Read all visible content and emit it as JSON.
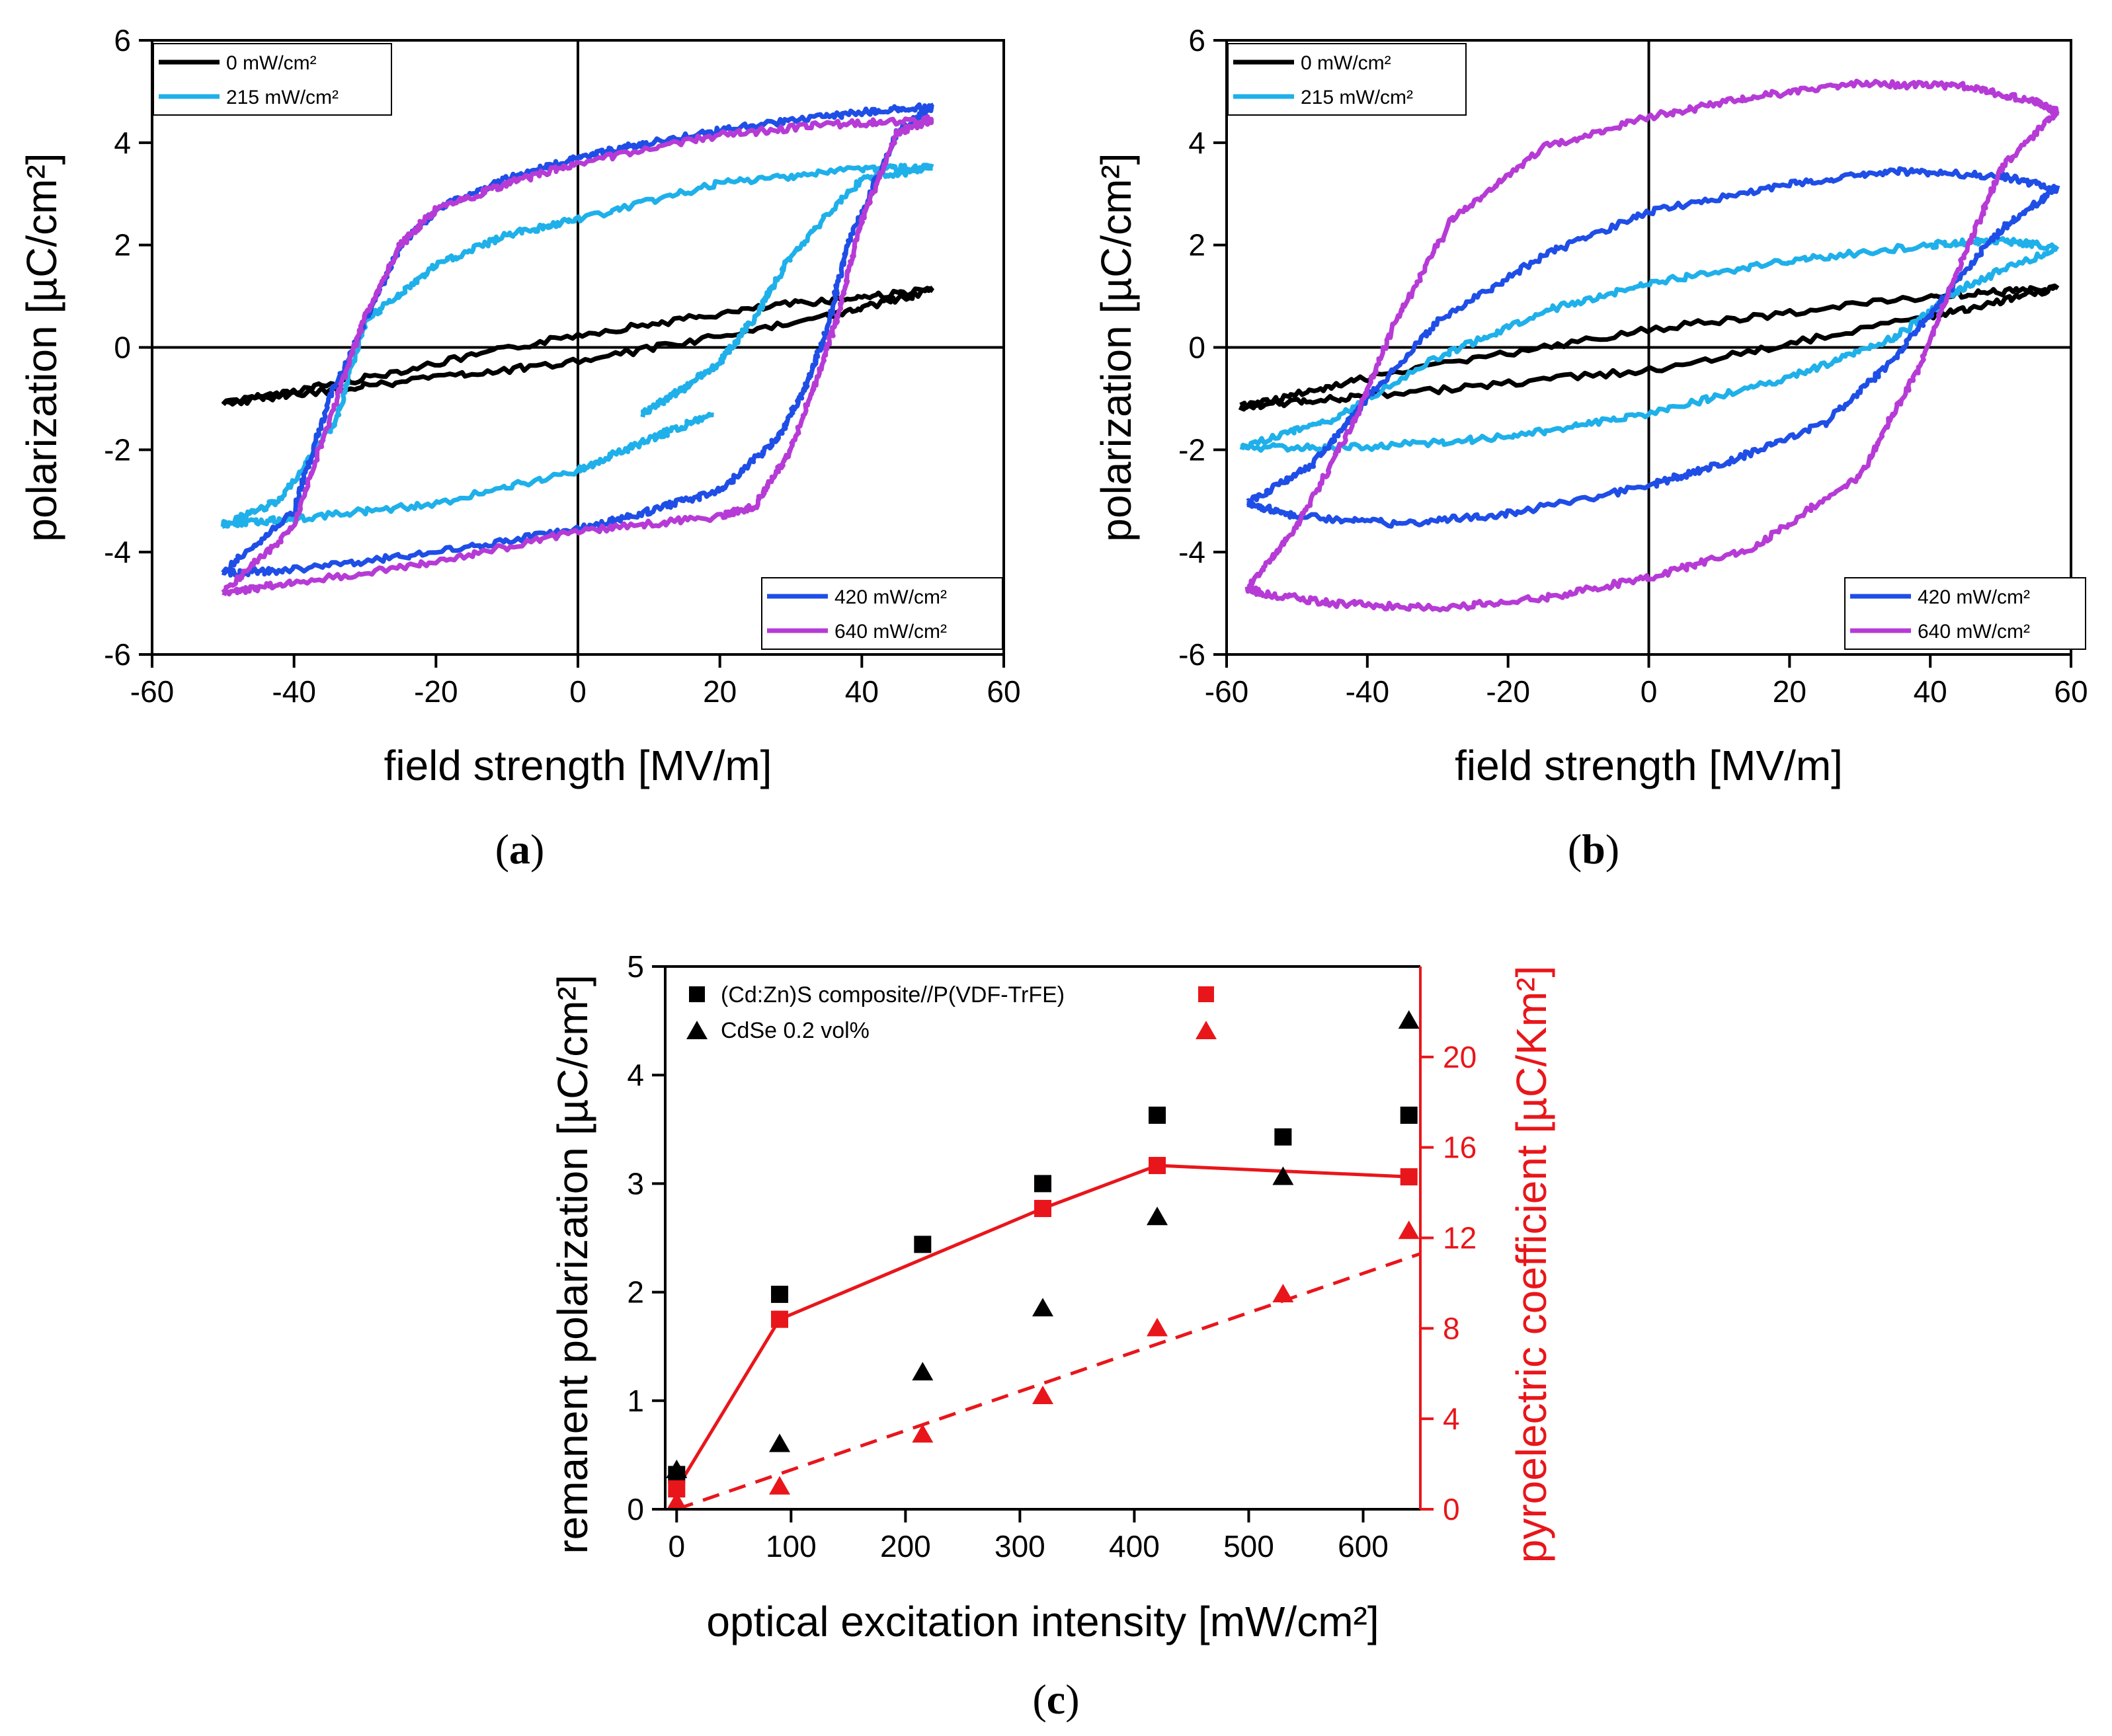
{
  "chart_data": [
    {
      "panel": "a",
      "type": "line",
      "panel_label": "a",
      "xlabel": "field strength [MV/m]",
      "ylabel": "polarization [µC/cm²]",
      "xlim": [
        -60,
        60
      ],
      "ylim": [
        -6,
        6
      ],
      "xticks": [
        -60,
        -40,
        -20,
        0,
        20,
        40,
        60
      ],
      "yticks": [
        -6,
        -4,
        -2,
        0,
        2,
        4,
        6
      ],
      "legend_top_left": [
        "0 mW/cm²",
        "215 mW/cm²"
      ],
      "legend_bottom_right": [
        "420 mW/cm²",
        "640 mW/cm²"
      ],
      "series": [
        {
          "name": "0 mW/cm²",
          "color": "#000000",
          "start": "upper",
          "upper": [
            [
              -50,
              -1.1
            ],
            [
              -30,
              -0.6
            ],
            [
              0,
              0.25
            ],
            [
              30,
              0.85
            ],
            [
              50,
              1.12
            ]
          ],
          "lower": [
            [
              50,
              1.12
            ],
            [
              35,
              0.6
            ],
            [
              0,
              -0.28
            ],
            [
              -30,
              -0.75
            ],
            [
              -50,
              -1.1
            ]
          ]
        },
        {
          "name": "215 mW/cm²",
          "color": "#1fb0ea",
          "start": "upper",
          "upper": [
            [
              -50,
              -3.45
            ],
            [
              -42,
              -3.0
            ],
            [
              -34,
              -1.4
            ],
            [
              -30,
              0.5
            ],
            [
              -20,
              1.6
            ],
            [
              -10,
              2.2
            ],
            [
              0,
              2.5
            ],
            [
              20,
              3.2
            ],
            [
              40,
              3.5
            ],
            [
              50,
              3.5
            ]
          ],
          "lower": [
            [
              50,
              3.5
            ],
            [
              40,
              3.3
            ],
            [
              30,
              1.8
            ],
            [
              25,
              0.6
            ],
            [
              20,
              -0.3
            ],
            [
              15,
              -0.8
            ],
            [
              9,
              -1.3
            ]
          ],
          "tail": [
            [
              19,
              -1.3
            ],
            [
              10,
              -1.8
            ],
            [
              0,
              -2.4
            ],
            [
              -20,
              -3.05
            ],
            [
              -40,
              -3.35
            ],
            [
              -50,
              -3.45
            ]
          ]
        },
        {
          "name": "420 mW/cm²",
          "color": "#1f4ee6",
          "start": "upper",
          "upper": [
            [
              -50,
              -4.4
            ],
            [
              -40,
              -3.2
            ],
            [
              -35,
              -1.0
            ],
            [
              -30,
              0.5
            ],
            [
              -25,
              2.0
            ],
            [
              -20,
              2.7
            ],
            [
              -10,
              3.3
            ],
            [
              0,
              3.7
            ],
            [
              10,
              4.0
            ],
            [
              25,
              4.35
            ],
            [
              40,
              4.6
            ],
            [
              50,
              4.7
            ]
          ],
          "lower": [
            [
              50,
              4.7
            ],
            [
              45,
              4.2
            ],
            [
              38,
              2.0
            ],
            [
              35,
              0.3
            ],
            [
              32,
              -0.8
            ],
            [
              28,
              -1.8
            ],
            [
              20,
              -2.8
            ],
            [
              10,
              -3.2
            ],
            [
              0,
              -3.55
            ],
            [
              -20,
              -4.0
            ],
            [
              -40,
              -4.35
            ],
            [
              -50,
              -4.4
            ]
          ]
        },
        {
          "name": "640 mW/cm²",
          "color": "#b63bd6",
          "start": "upper",
          "upper": [
            [
              -50,
              -4.8
            ],
            [
              -40,
              -3.5
            ],
            [
              -34,
              -1.0
            ],
            [
              -30,
              0.6
            ],
            [
              -25,
              2.0
            ],
            [
              -20,
              2.7
            ],
            [
              -10,
              3.2
            ],
            [
              0,
              3.6
            ],
            [
              20,
              4.15
            ],
            [
              35,
              4.35
            ],
            [
              50,
              4.45
            ]
          ],
          "lower": [
            [
              50,
              4.45
            ],
            [
              45,
              4.2
            ],
            [
              40,
              2.5
            ],
            [
              37,
              0.8
            ],
            [
              34,
              -0.5
            ],
            [
              30,
              -2.0
            ],
            [
              25,
              -3.1
            ],
            [
              20,
              -3.3
            ],
            [
              0,
              -3.6
            ],
            [
              -20,
              -4.2
            ],
            [
              -40,
              -4.6
            ],
            [
              -50,
              -4.8
            ]
          ]
        }
      ]
    },
    {
      "panel": "b",
      "type": "line",
      "panel_label": "b",
      "xlabel": "field strength [MV/m]",
      "ylabel": "polarization [µC/cm²]",
      "xlim": [
        -60,
        60
      ],
      "ylim": [
        -6,
        6
      ],
      "xticks": [
        -60,
        -40,
        -20,
        0,
        20,
        40,
        60
      ],
      "yticks": [
        -6,
        -4,
        -2,
        0,
        2,
        4,
        6
      ],
      "legend_top_left": [
        "0 mW/cm²",
        "215 mW/cm²"
      ],
      "legend_bottom_right": [
        "420 mW/cm²",
        "640 mW/cm²"
      ],
      "series": [
        {
          "name": "0 mW/cm²",
          "color": "#000000",
          "start": "upper",
          "upper": [
            [
              -58,
              -1.15
            ],
            [
              -40,
              -0.6
            ],
            [
              0,
              0.35
            ],
            [
              40,
              1.0
            ],
            [
              58,
              1.15
            ]
          ],
          "lower": [
            [
              58,
              1.15
            ],
            [
              40,
              0.6
            ],
            [
              0,
              -0.45
            ],
            [
              -40,
              -0.95
            ],
            [
              -58,
              -1.15
            ]
          ]
        },
        {
          "name": "215 mW/cm²",
          "color": "#1fb0ea",
          "start": "upper",
          "upper": [
            [
              -58,
              -1.95
            ],
            [
              -45,
              -1.4
            ],
            [
              -30,
              -0.2
            ],
            [
              -15,
              0.7
            ],
            [
              0,
              1.25
            ],
            [
              20,
              1.7
            ],
            [
              40,
              2.0
            ],
            [
              50,
              2.1
            ],
            [
              58,
              1.95
            ]
          ],
          "lower": [
            [
              58,
              1.95
            ],
            [
              45,
              1.2
            ],
            [
              35,
              0.2
            ],
            [
              20,
              -0.6
            ],
            [
              0,
              -1.3
            ],
            [
              -20,
              -1.75
            ],
            [
              -40,
              -1.95
            ],
            [
              -58,
              -1.95
            ]
          ]
        },
        {
          "name": "420 mW/cm²",
          "color": "#1f4ee6",
          "start": "upper",
          "upper": [
            [
              -57,
              -3.05
            ],
            [
              -48,
              -2.3
            ],
            [
              -40,
              -1.0
            ],
            [
              -30,
              0.5
            ],
            [
              -15,
              1.8
            ],
            [
              0,
              2.65
            ],
            [
              20,
              3.2
            ],
            [
              35,
              3.45
            ],
            [
              50,
              3.35
            ],
            [
              58,
              3.1
            ]
          ],
          "lower": [
            [
              58,
              3.1
            ],
            [
              50,
              2.3
            ],
            [
              42,
              1.0
            ],
            [
              35,
              -0.2
            ],
            [
              25,
              -1.5
            ],
            [
              10,
              -2.3
            ],
            [
              0,
              -2.7
            ],
            [
              -20,
              -3.25
            ],
            [
              -35,
              -3.45
            ],
            [
              -50,
              -3.3
            ],
            [
              -57,
              -3.05
            ]
          ]
        },
        {
          "name": "640 mW/cm²",
          "color": "#b63bd6",
          "start": "upper",
          "upper": [
            [
              -57,
              -4.7
            ],
            [
              -50,
              -3.5
            ],
            [
              -42,
              -1.5
            ],
            [
              -36,
              0.5
            ],
            [
              -28,
              2.5
            ],
            [
              -15,
              3.9
            ],
            [
              0,
              4.5
            ],
            [
              15,
              4.9
            ],
            [
              30,
              5.15
            ],
            [
              45,
              5.1
            ],
            [
              55,
              4.8
            ],
            [
              58,
              4.6
            ]
          ],
          "lower": [
            [
              58,
              4.6
            ],
            [
              50,
              3.5
            ],
            [
              44,
              1.5
            ],
            [
              38,
              -0.5
            ],
            [
              30,
              -2.5
            ],
            [
              15,
              -3.9
            ],
            [
              0,
              -4.5
            ],
            [
              -15,
              -4.9
            ],
            [
              -30,
              -5.1
            ],
            [
              -45,
              -5.0
            ],
            [
              -55,
              -4.8
            ],
            [
              -57,
              -4.7
            ]
          ]
        }
      ]
    },
    {
      "panel": "c",
      "type": "scatter",
      "panel_label": "c",
      "xlabel": "optical excitation intensity [mW/cm²]",
      "ylabel": "remanent polarization [µC/cm²]",
      "y2label": "pyroelectric coefficient [µC/Km²]",
      "xlim": [
        -10,
        650
      ],
      "ylim": [
        0,
        5
      ],
      "y2lim": [
        0,
        24
      ],
      "xticks": [
        0,
        100,
        200,
        300,
        400,
        500,
        600
      ],
      "yticks": [
        0,
        1,
        2,
        3,
        4,
        5
      ],
      "y2ticks": [
        0,
        4,
        8,
        12,
        16,
        20
      ],
      "left_color": "#000000",
      "right_color": "#e8161b",
      "legend": [
        "(Cd:Zn)S composite//P(VDF-TrFE)",
        "CdSe 0.2 vol%"
      ],
      "x": [
        0,
        90,
        215,
        320,
        420,
        530,
        640
      ],
      "series": [
        {
          "name": "(Cd:Zn)S composite//P(VDF-TrFE) remanent polarization",
          "axis": "left",
          "marker": "square",
          "color": "#000000",
          "values": [
            0.32,
            1.98,
            2.44,
            3.0,
            3.63,
            3.43,
            3.63
          ]
        },
        {
          "name": "CdSe 0.2 vol% remanent polarization",
          "axis": "left",
          "marker": "triangle",
          "color": "#000000",
          "values": [
            0.36,
            0.6,
            1.26,
            1.85,
            2.69,
            3.06,
            4.5
          ]
        },
        {
          "name": "(Cd:Zn)S composite//P(VDF-TrFE) pyroelectric coefficient",
          "axis": "right",
          "marker": "square",
          "color": "#e8161b",
          "line": "solid",
          "values": [
            0.9,
            8.4,
            null,
            13.3,
            15.2,
            null,
            14.7
          ]
        },
        {
          "name": "CdSe 0.2 vol% pyroelectric coefficient",
          "axis": "right",
          "marker": "triangle",
          "color": "#e8161b",
          "line": "dashed",
          "values": [
            0.3,
            1.0,
            3.3,
            5.0,
            8.0,
            9.5,
            12.3
          ]
        }
      ]
    }
  ]
}
